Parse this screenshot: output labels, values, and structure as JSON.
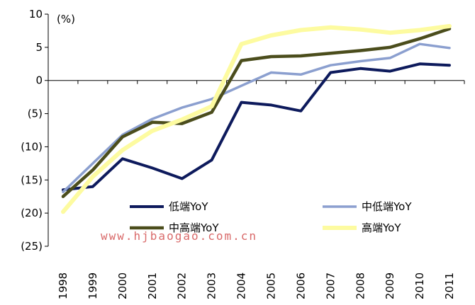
{
  "chart_data": {
    "type": "line",
    "unit_label": "(%)",
    "x": [
      "1998",
      "1999",
      "2000",
      "2001",
      "2002",
      "2003",
      "2004",
      "2005",
      "2006",
      "2007",
      "2008",
      "2009",
      "2010",
      "2011"
    ],
    "ylim": [
      -25,
      10
    ],
    "yticks": [
      10,
      5,
      0,
      -5,
      -10,
      -15,
      -20,
      -25
    ],
    "ytick_labels": [
      "10",
      "5",
      "0",
      "(5)",
      "(10)",
      "(15)",
      "(20)",
      "(25)"
    ],
    "grid": false,
    "legend_position": "bottom-inside",
    "series": [
      {
        "name": "低端YoY",
        "color": "#0d1a5c",
        "width": 4,
        "values": [
          -16.5,
          -16.0,
          -11.8,
          -13.2,
          -14.8,
          -12.0,
          -3.3,
          -3.7,
          -4.6,
          1.2,
          1.8,
          1.4,
          2.5,
          2.3
        ]
      },
      {
        "name": "中低端YoY",
        "color": "#8b9fcf",
        "width": 3.5,
        "values": [
          -16.8,
          -12.5,
          -8.2,
          -5.8,
          -4.1,
          -2.8,
          -0.8,
          1.2,
          0.9,
          2.3,
          2.9,
          3.4,
          5.5,
          4.9
        ]
      },
      {
        "name": "中高端YoY",
        "color": "#4b4d1c",
        "width": 4.5,
        "values": [
          -17.5,
          -13.5,
          -8.5,
          -6.3,
          -6.5,
          -4.8,
          3.0,
          3.6,
          3.7,
          4.1,
          4.5,
          5.0,
          6.3,
          7.8
        ]
      },
      {
        "name": "高端YoY",
        "color": "#fdfba0",
        "width": 6,
        "values": [
          -19.8,
          -14.5,
          -10.5,
          -7.6,
          -5.9,
          -3.9,
          5.5,
          6.8,
          7.6,
          8.0,
          7.7,
          7.2,
          7.6,
          8.2
        ]
      }
    ]
  },
  "watermark": "www.hjbaogao.com.cn"
}
